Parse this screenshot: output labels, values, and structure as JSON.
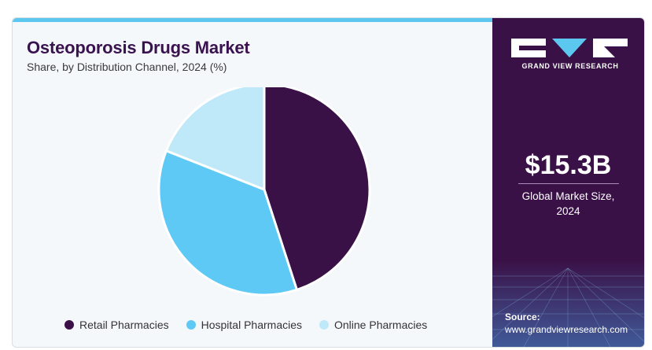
{
  "header": {
    "title": "Osteoporosis Drugs Market",
    "subtitle": "Share, by Distribution Channel, 2024 (%)"
  },
  "chart_data": {
    "type": "pie",
    "categories": [
      "Retail Pharmacies",
      "Hospital Pharmacies",
      "Online Pharmacies"
    ],
    "values": [
      45,
      36,
      19
    ],
    "colors": [
      "#3a1147",
      "#5ec9f5",
      "#bfe8f8"
    ],
    "start": "12 o'clock",
    "direction": "clockwise",
    "legend_position": "bottom"
  },
  "sidebar": {
    "brand": "GRAND VIEW RESEARCH",
    "value": "$15.3B",
    "value_label_line1": "Global Market Size,",
    "value_label_line2": "2024",
    "source_label": "Source:",
    "source_url": "www.grandviewresearch.com"
  },
  "colors": {
    "accent_dark": "#3a1147",
    "accent_light": "#5cc8f0"
  }
}
